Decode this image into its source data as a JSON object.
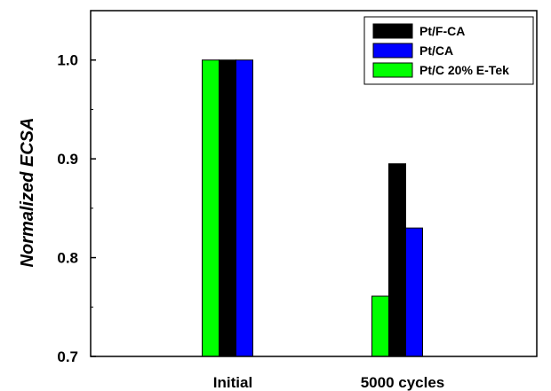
{
  "chart_data": {
    "type": "bar",
    "categories": [
      "Initial",
      "5000 cycles"
    ],
    "series": [
      {
        "name": "Pt/C 20% E-Tek",
        "color": "#00ff00",
        "values": [
          1.0,
          0.761
        ]
      },
      {
        "name": "Pt/F-CA",
        "color": "#000000",
        "values": [
          1.0,
          0.895
        ]
      },
      {
        "name": "Pt/CA",
        "color": "#0000ff",
        "values": [
          1.0,
          0.83
        ]
      }
    ],
    "legend_order": [
      "Pt/F-CA",
      "Pt/CA",
      "Pt/C 20% E-Tek"
    ],
    "ylabel": "Normalized ECSA",
    "xlabel": "",
    "title": "",
    "ylim": [
      0.7,
      1.05
    ],
    "yticks": [
      "0.7",
      "0.8",
      "0.9",
      "1.0"
    ],
    "legend_position": "top-right",
    "grid": false
  }
}
